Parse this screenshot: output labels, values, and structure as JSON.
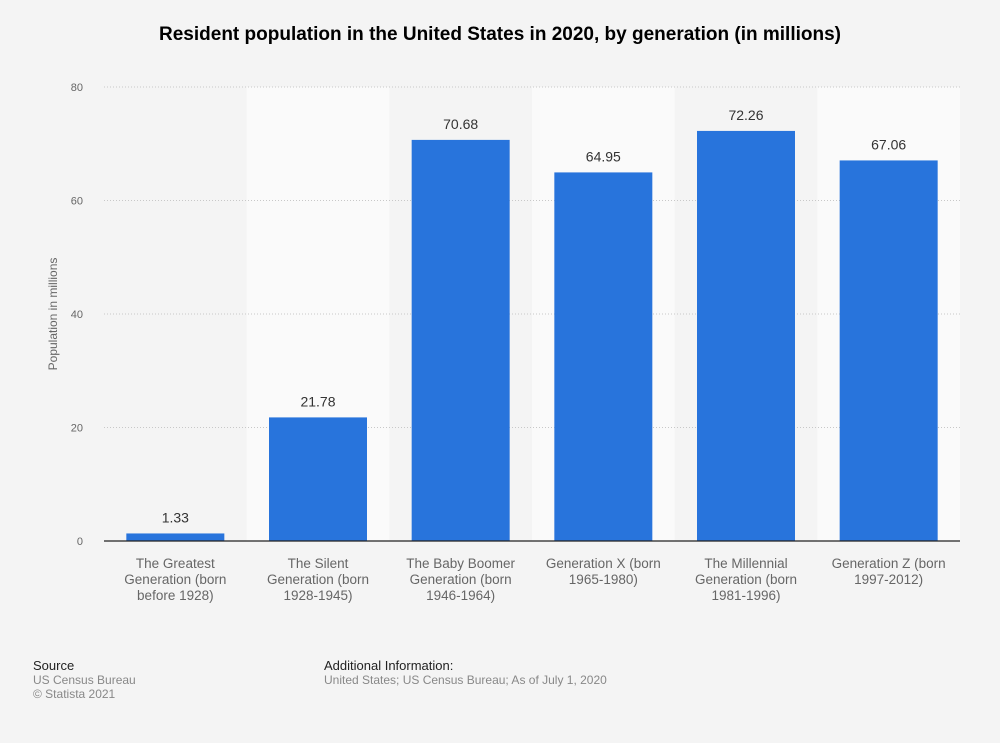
{
  "chart_data": {
    "type": "bar",
    "title": "Resident population in the United States in 2020, by generation (in millions)",
    "xlabel": "",
    "ylabel": "Population in millions",
    "ylim": [
      0,
      80
    ],
    "yticks": [
      0,
      20,
      40,
      60,
      80
    ],
    "grid": true,
    "categories": [
      "The Greatest Generation (born before 1928)",
      "The Silent Generation (born 1928-1945)",
      "The Baby Boomer Generation (born 1946-1964)",
      "Generation X (born 1965-1980)",
      "The Millennial Generation (born 1981-1996)",
      "Generation Z (born 1997-2012)"
    ],
    "category_lines": [
      [
        "The Greatest",
        "Generation (born",
        "before 1928)"
      ],
      [
        "The Silent",
        "Generation (born",
        "1928-1945)"
      ],
      [
        "The Baby Boomer",
        "Generation (born",
        "1946-1964)"
      ],
      [
        "Generation X (born",
        "1965-1980)"
      ],
      [
        "The Millennial",
        "Generation (born",
        "1981-1996)"
      ],
      [
        "Generation Z (born",
        "1997-2012)"
      ]
    ],
    "values": [
      1.33,
      21.78,
      70.68,
      64.95,
      72.26,
      67.06
    ],
    "data_labels": [
      "1.33",
      "21.78",
      "70.68",
      "64.95",
      "72.26",
      "67.06"
    ],
    "bar_color": "#2874dc"
  },
  "footer": {
    "source_heading": "Source",
    "source_lines": [
      "US Census Bureau",
      "© Statista 2021"
    ],
    "info_heading": "Additional Information:",
    "info_text": "United States; US Census Bureau; As of July 1, 2020"
  }
}
